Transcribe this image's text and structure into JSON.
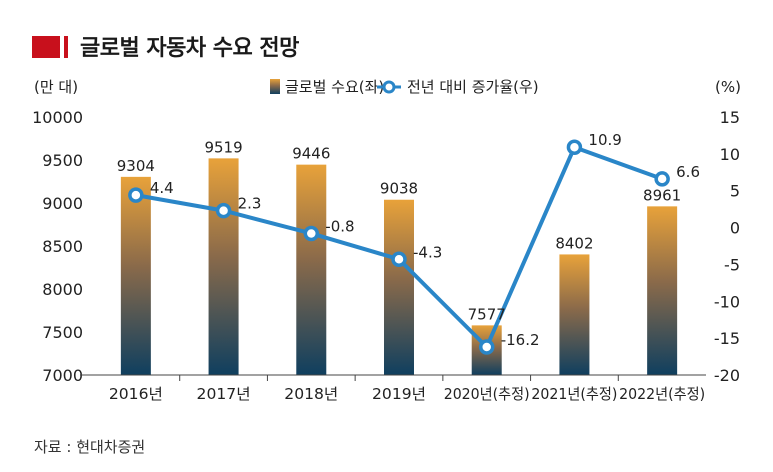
{
  "header": {
    "title": "글로벌 자동차 수요 전망"
  },
  "footer": {
    "source": "자료 : 현대차증권"
  },
  "chart_data": {
    "type": "bar",
    "title": "글로벌 자동차 수요 전망",
    "categories": [
      "2016년",
      "2017년",
      "2018년",
      "2019년",
      "2020년(추정)",
      "2021년(추정)",
      "2022년(추정)"
    ],
    "series": [
      {
        "name": "글로벌 수요(좌)",
        "type": "bar",
        "axis": "left",
        "values": [
          9304,
          9519,
          9446,
          9038,
          7577,
          8402,
          8961
        ]
      },
      {
        "name": "전년 대비 증가율(우)",
        "type": "line",
        "axis": "right",
        "values": [
          4.4,
          2.3,
          -0.8,
          -4.3,
          -16.2,
          10.9,
          6.6
        ]
      }
    ],
    "y_left": {
      "unit": "(만 대)",
      "min": 7000,
      "max": 10000,
      "ticks": [
        7000,
        7500,
        8000,
        8500,
        9000,
        9500,
        10000
      ]
    },
    "y_right": {
      "unit": "(%)",
      "min": -20,
      "max": 15,
      "ticks": [
        -20,
        -15,
        -10,
        -5,
        0,
        5,
        10,
        15
      ]
    },
    "legend_position": "top-center",
    "colors": {
      "bar_top": "#e8a23a",
      "bar_bottom": "#12405e",
      "line": "#2a86c8",
      "accent": "#c8101c"
    }
  }
}
